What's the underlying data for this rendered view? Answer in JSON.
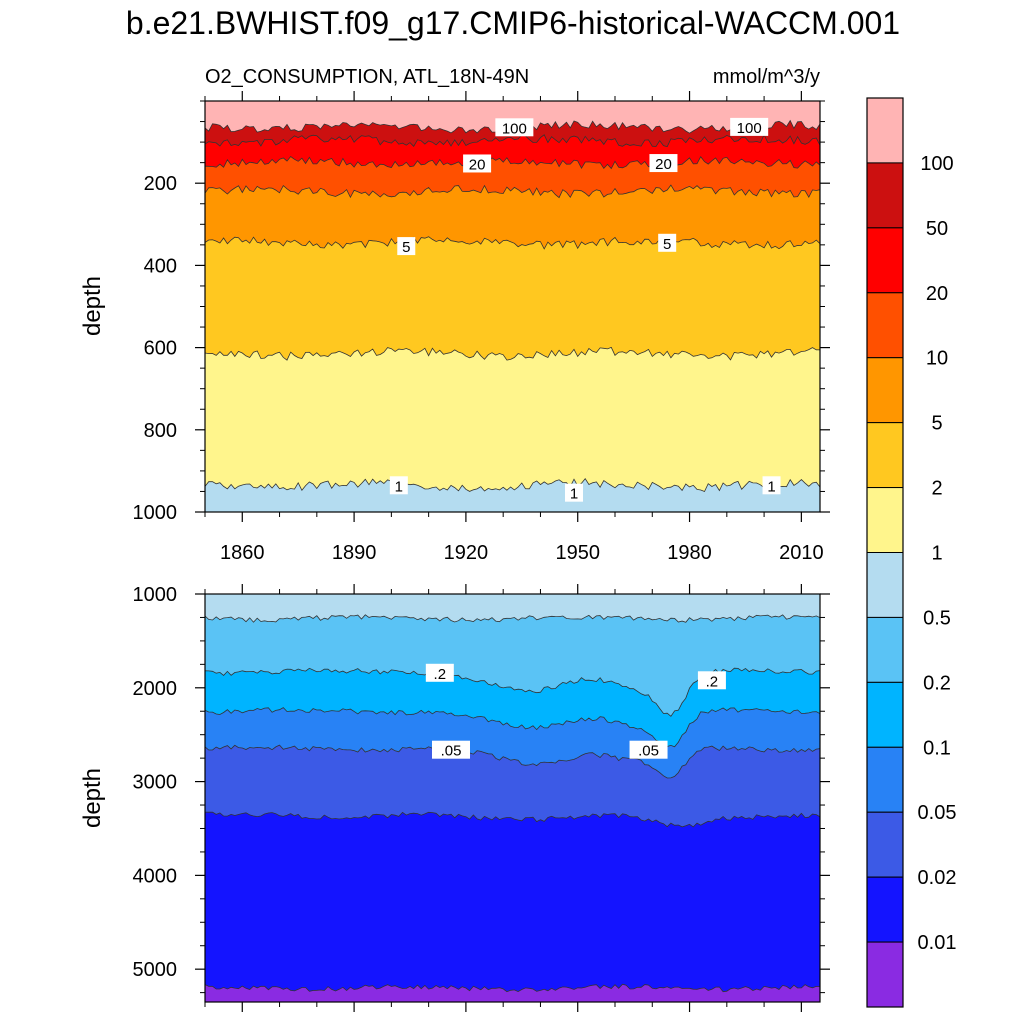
{
  "title": "b.e21.BWHIST.f09_g17.CMIP6-historical-WACCM.001",
  "chart_data": [
    {
      "type": "contour",
      "panel": "upper",
      "subtitle_left": "O2_CONSUMPTION, ATL_18N-49N",
      "subtitle_right": "mmol/m^3/y",
      "ylabel": "depth",
      "xlim": [
        1850,
        2015
      ],
      "ylim": [
        0,
        1000
      ],
      "y_reversed": true,
      "x_ticks": [
        1860,
        1890,
        1920,
        1950,
        1980,
        2010
      ],
      "x_tick_labels": [
        "1860",
        "1890",
        "1920",
        "1950",
        "1980",
        "2010"
      ],
      "y_ticks": [
        200,
        400,
        600,
        800,
        1000
      ],
      "y_tick_labels": [
        "200",
        "400",
        "600",
        "800",
        "1000"
      ],
      "contour_levels": [
        100,
        50,
        20,
        10,
        5,
        2,
        1
      ],
      "contour_depths": [
        {
          "level": 100,
          "depth": 63
        },
        {
          "level": 50,
          "depth": 97
        },
        {
          "level": 20,
          "depth": 150
        },
        {
          "level": 10,
          "depth": 220
        },
        {
          "level": 5,
          "depth": 345
        },
        {
          "level": 2,
          "depth": 615
        },
        {
          "level": 1,
          "depth": 935
        }
      ],
      "contour_labels": [
        {
          "text": "100",
          "year": 1933,
          "depth": 64
        },
        {
          "text": "100",
          "year": 1996,
          "depth": 63
        },
        {
          "text": "20",
          "year": 1923,
          "depth": 152
        },
        {
          "text": "20",
          "year": 1973,
          "depth": 151
        },
        {
          "text": "5",
          "year": 1904,
          "depth": 353
        },
        {
          "text": "5",
          "year": 1974,
          "depth": 345
        },
        {
          "text": "1",
          "year": 1902,
          "depth": 935
        },
        {
          "text": "1",
          "year": 1949,
          "depth": 953
        },
        {
          "text": "1",
          "year": 2002,
          "depth": 935
        }
      ]
    },
    {
      "type": "contour",
      "panel": "lower",
      "ylabel": "depth",
      "xlim": [
        1850,
        2015
      ],
      "ylim": [
        1000,
        5350
      ],
      "y_reversed": true,
      "y_ticks": [
        1000,
        2000,
        3000,
        4000,
        5000
      ],
      "y_tick_labels": [
        "1000",
        "2000",
        "3000",
        "4000",
        "5000"
      ],
      "contour_levels": [
        0.5,
        0.2,
        0.1,
        0.05,
        0.02,
        0.01
      ],
      "contour_depths": [
        {
          "level": 0.5,
          "depth": 1260
        },
        {
          "level": 0.2,
          "depth": 1830
        },
        {
          "level": 0.1,
          "depth": 2250
        },
        {
          "level": 0.05,
          "depth": 2650
        },
        {
          "level": 0.02,
          "depth": 3360
        },
        {
          "level": 0.01,
          "depth": 5200
        }
      ],
      "contour_labels": [
        {
          "text": ".2",
          "year": 1913,
          "depth": 1840
        },
        {
          "text": ".2",
          "year": 1986,
          "depth": 1920
        },
        {
          "text": ".05",
          "year": 1916,
          "depth": 2660
        },
        {
          "text": ".05",
          "year": 1969,
          "depth": 2660
        }
      ]
    }
  ],
  "colorbar": {
    "tick_labels": [
      "100",
      "50",
      "20",
      "10",
      "5",
      "2",
      "1",
      "0.5",
      "0.2",
      "0.1",
      "0.05",
      "0.02",
      "0.01"
    ],
    "colors": [
      "#ffb4b4",
      "#cc1010",
      "#ff0000",
      "#ff5000",
      "#ff9600",
      "#ffc820",
      "#fff58c",
      "#b4dcf0",
      "#5ac3f5",
      "#00b4ff",
      "#2882f5",
      "#3c5ae6",
      "#1414ff",
      "#8a2be2"
    ]
  }
}
